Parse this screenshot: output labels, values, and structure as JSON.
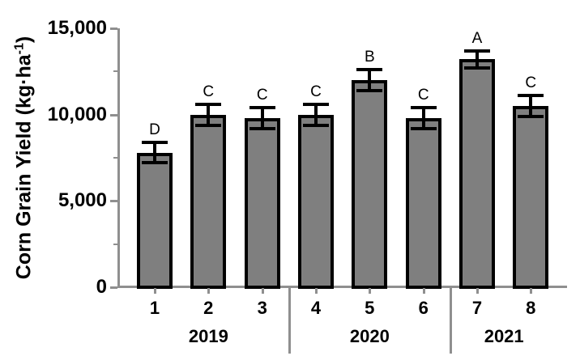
{
  "figure": {
    "ylabel": {
      "prefix": "Corn Grain Yield (kg·ha",
      "superscript": "-1",
      "suffix": ")"
    }
  },
  "chart_data": {
    "type": "bar",
    "title": "",
    "xlabel": "",
    "ylabel": "Corn Grain Yield (kg·ha⁻¹)",
    "categories": [
      "1",
      "2",
      "3",
      "4",
      "5",
      "6",
      "7",
      "8"
    ],
    "values": [
      7800,
      10000,
      9800,
      10000,
      12000,
      9800,
      13200,
      10500
    ],
    "errors": [
      600,
      600,
      600,
      600,
      600,
      600,
      500,
      600
    ],
    "significance_letters": [
      "D",
      "C",
      "C",
      "C",
      "B",
      "C",
      "A",
      "C"
    ],
    "groups": [
      {
        "label": "2019",
        "start": 0,
        "end": 2
      },
      {
        "label": "2020",
        "start": 3,
        "end": 5
      },
      {
        "label": "2021",
        "start": 6,
        "end": 7
      }
    ],
    "y_axis": {
      "min": 0,
      "max": 15000,
      "major_ticks": [
        0,
        5000,
        10000,
        15000
      ],
      "tick_labels": [
        "0",
        "5,000",
        "10,000",
        "15,000"
      ],
      "minor_ticks": [
        2500,
        7500,
        12500
      ]
    },
    "grid": false,
    "legend": "none",
    "colors": {
      "bar_fill": "#7f7f7f",
      "bar_border": "#000000",
      "axis": "#8f8f8f",
      "error_bar": "#000000",
      "text": "#000000"
    }
  }
}
